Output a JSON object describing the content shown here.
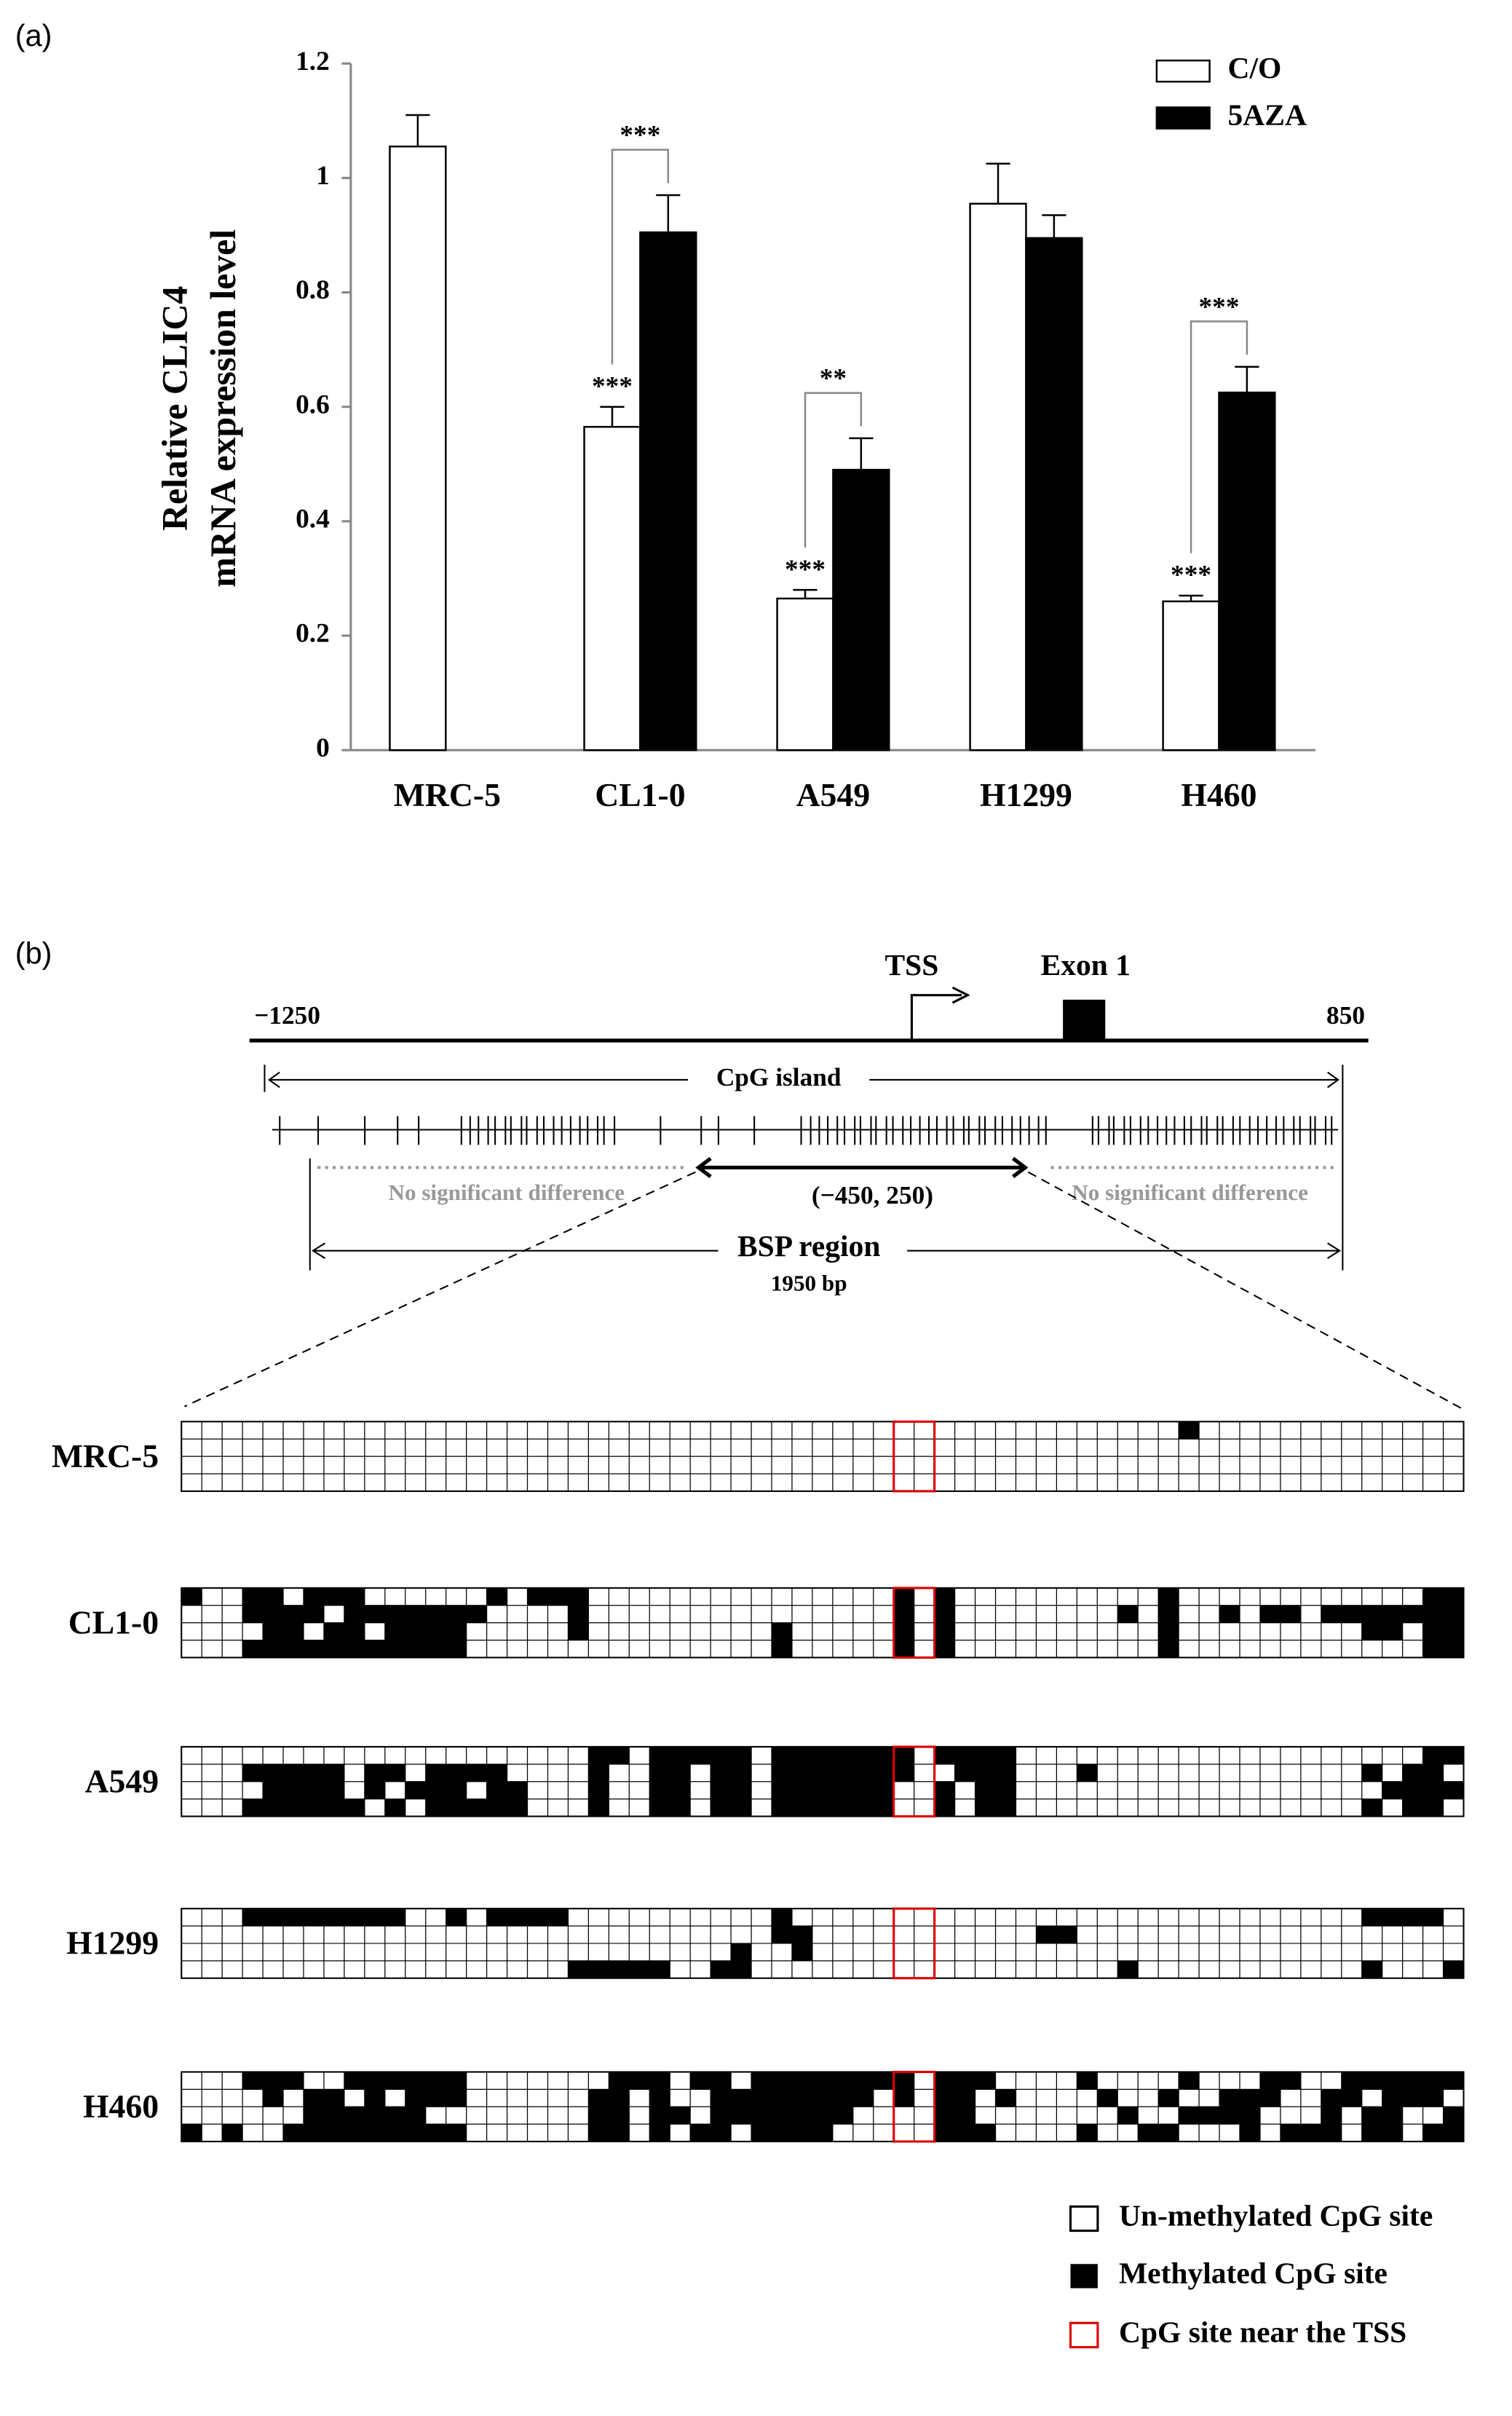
{
  "chart_data": {
    "type": "bar",
    "panel_label": "(a)",
    "ylabel": [
      "Relative CLIC4",
      "mRNA expression level"
    ],
    "categories": [
      "MRC-5",
      "CL1-0",
      "A549",
      "H1299",
      "H460"
    ],
    "series": [
      {
        "name": "C/O",
        "color": "#ffffff",
        "values": [
          1.055,
          0.565,
          0.265,
          0.955,
          0.26
        ],
        "errors": [
          0.055,
          0.035,
          0.015,
          0.07,
          0.01
        ],
        "annotations": [
          null,
          "***",
          "***",
          null,
          "***"
        ]
      },
      {
        "name": "5AZA",
        "color": "#000000",
        "values": [
          null,
          0.905,
          0.49,
          0.895,
          0.625
        ],
        "errors": [
          null,
          0.065,
          0.055,
          0.04,
          0.045
        ]
      }
    ],
    "comparisons": [
      null,
      "***",
      "**",
      null,
      "***"
    ],
    "ylim": [
      0,
      1.2
    ],
    "yticks": [
      0,
      0.2,
      0.4,
      0.6,
      0.8,
      1,
      1.2
    ],
    "legend": "top-right"
  },
  "panel_b": {
    "panel_label": "(b)",
    "gene_map": {
      "tss": "TSS",
      "exon": "Exon 1",
      "start": "−1250",
      "end": "850",
      "cpg_island": "CpG island",
      "no_difference": [
        "No significant difference",
        "No significant difference"
      ],
      "core_region": "(−450, 250)",
      "bsp_region": "BSP region",
      "bsp_length": "1950 bp"
    },
    "samples": [
      {
        "name": "MRC-5",
        "methylated": [
          [
            49
          ],
          [],
          [],
          []
        ]
      },
      {
        "name": "CL1-0",
        "methylated": [
          [
            0,
            3,
            4,
            6,
            7,
            8,
            15,
            17,
            18,
            19,
            35,
            37,
            48,
            61,
            62
          ],
          [
            3,
            4,
            5,
            6,
            8,
            9,
            10,
            11,
            12,
            13,
            14,
            19,
            35,
            37,
            46,
            48,
            51,
            53,
            54,
            56,
            57,
            58,
            59,
            60,
            61,
            62
          ],
          [
            4,
            5,
            7,
            8,
            10,
            11,
            12,
            13,
            19,
            29,
            35,
            37,
            48,
            58,
            59,
            61,
            62
          ],
          [
            3,
            4,
            5,
            6,
            7,
            8,
            9,
            10,
            11,
            12,
            13,
            29,
            35,
            37,
            48,
            61,
            62
          ]
        ]
      },
      {
        "name": "A549",
        "methylated": [
          [
            20,
            21,
            23,
            24,
            25,
            26,
            27,
            29,
            30,
            31,
            32,
            33,
            34,
            35,
            37,
            38,
            39,
            40,
            61,
            62
          ],
          [
            3,
            4,
            5,
            6,
            7,
            9,
            10,
            12,
            13,
            14,
            15,
            20,
            23,
            24,
            26,
            27,
            29,
            30,
            31,
            32,
            33,
            34,
            35,
            38,
            39,
            40,
            44,
            58,
            60,
            61
          ],
          [
            4,
            5,
            6,
            7,
            9,
            11,
            12,
            13,
            15,
            16,
            20,
            23,
            24,
            26,
            27,
            29,
            30,
            31,
            32,
            33,
            34,
            37,
            39,
            40,
            59,
            60,
            61,
            62
          ],
          [
            3,
            4,
            5,
            6,
            7,
            8,
            10,
            12,
            13,
            14,
            15,
            16,
            20,
            23,
            24,
            26,
            27,
            29,
            30,
            31,
            32,
            33,
            34,
            37,
            39,
            40,
            58,
            60,
            61
          ]
        ]
      },
      {
        "name": "H1299",
        "methylated": [
          [
            3,
            4,
            5,
            6,
            7,
            8,
            9,
            10,
            13,
            15,
            16,
            17,
            18,
            29,
            58,
            59,
            60,
            61
          ],
          [
            29,
            30,
            42,
            43
          ],
          [
            27,
            30
          ],
          [
            19,
            20,
            21,
            22,
            23,
            26,
            27,
            46,
            58,
            62
          ]
        ]
      },
      {
        "name": "H460",
        "methylated": [
          [
            3,
            4,
            5,
            8,
            9,
            10,
            11,
            12,
            13,
            21,
            22,
            23,
            25,
            26,
            28,
            29,
            30,
            31,
            32,
            33,
            34,
            35,
            37,
            38,
            39,
            44,
            49,
            53,
            54,
            57,
            58,
            59,
            60,
            61,
            62
          ],
          [
            4,
            6,
            7,
            9,
            11,
            12,
            13,
            20,
            21,
            23,
            26,
            27,
            28,
            29,
            30,
            31,
            32,
            33,
            35,
            37,
            38,
            40,
            45,
            48,
            51,
            52,
            53,
            56,
            57,
            59,
            60,
            61
          ],
          [
            6,
            7,
            8,
            9,
            10,
            11,
            20,
            21,
            23,
            24,
            26,
            27,
            28,
            29,
            30,
            31,
            32,
            37,
            38,
            46,
            49,
            50,
            51,
            52,
            56,
            58,
            59,
            62
          ],
          [
            0,
            2,
            5,
            6,
            7,
            8,
            9,
            10,
            11,
            12,
            13,
            20,
            21,
            23,
            25,
            26,
            28,
            29,
            30,
            31,
            37,
            38,
            39,
            44,
            47,
            48,
            52,
            54,
            55,
            56,
            58,
            59,
            61,
            62
          ]
        ]
      }
    ],
    "legend": [
      "Un-methylated CpG site",
      "Methylated CpG site",
      "CpG site near the TSS"
    ]
  }
}
